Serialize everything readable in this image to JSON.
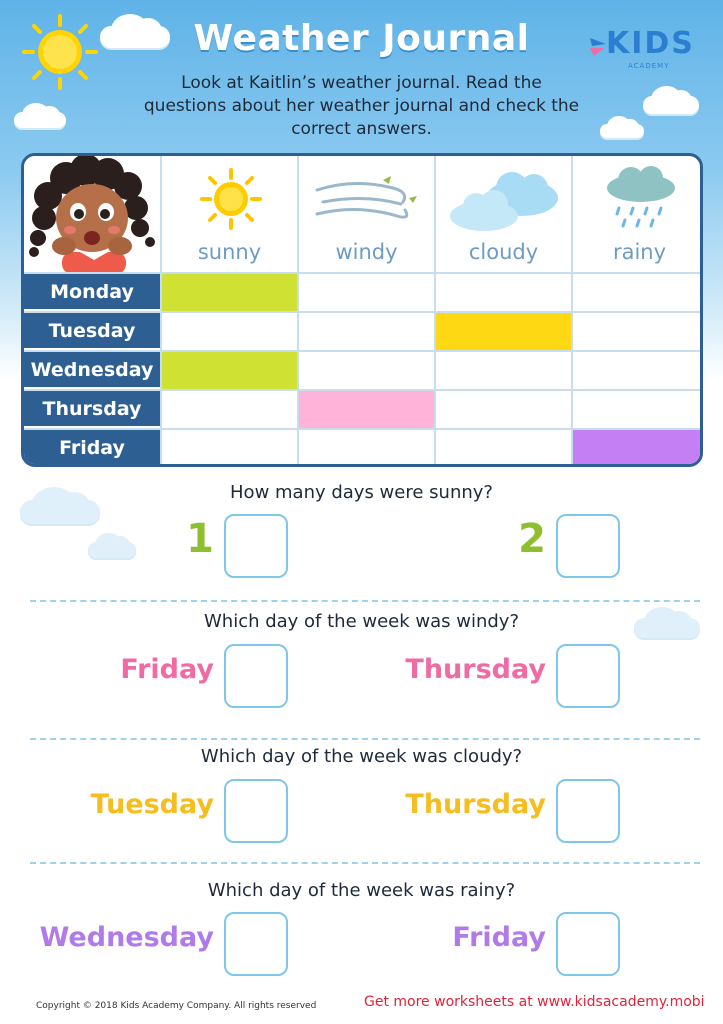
{
  "header": {
    "title": "Weather Journal",
    "intro": "Look at Kaitlin’s weather journal. Read the questions about her weather journal and check the correct answers.",
    "logo_text": "KIDS",
    "logo_sub": "ACADEMY"
  },
  "journal": {
    "weather": [
      "sunny",
      "windy",
      "cloudy",
      "rainy"
    ],
    "days": [
      "Monday",
      "Tuesday",
      "Wednesday",
      "Thursday",
      "Friday"
    ],
    "marks": [
      {
        "day": "Monday",
        "weather": "sunny",
        "color": "#cfe234"
      },
      {
        "day": "Tuesday",
        "weather": "cloudy",
        "color": "#ffd814"
      },
      {
        "day": "Wednesday",
        "weather": "sunny",
        "color": "#cfe234"
      },
      {
        "day": "Thursday",
        "weather": "windy",
        "color": "#ffb3d9"
      },
      {
        "day": "Friday",
        "weather": "rainy",
        "color": "#c57ff5"
      }
    ]
  },
  "questions": [
    {
      "text": "How many days were sunny?",
      "options": [
        {
          "label": "1",
          "color": "#8dbf2e"
        },
        {
          "label": "2",
          "color": "#8dbf2e"
        }
      ]
    },
    {
      "text": "Which day of the week was windy?",
      "options": [
        {
          "label": "Friday",
          "color": "#f06aa4"
        },
        {
          "label": "Thursday",
          "color": "#f06aa4"
        }
      ]
    },
    {
      "text": "Which day of the week was cloudy?",
      "options": [
        {
          "label": "Tuesday",
          "color": "#f5bd1f"
        },
        {
          "label": "Thursday",
          "color": "#f5bd1f"
        }
      ]
    },
    {
      "text": "Which day of the week was rainy?",
      "options": [
        {
          "label": "Wednesday",
          "color": "#b07be8"
        },
        {
          "label": "Friday",
          "color": "#b07be8"
        }
      ]
    }
  ],
  "footer": {
    "copyright": "Copyright © 2018 Kids Academy Company. All rights reserved",
    "link": "Get more worksheets at www.kidsacademy.mobi"
  }
}
